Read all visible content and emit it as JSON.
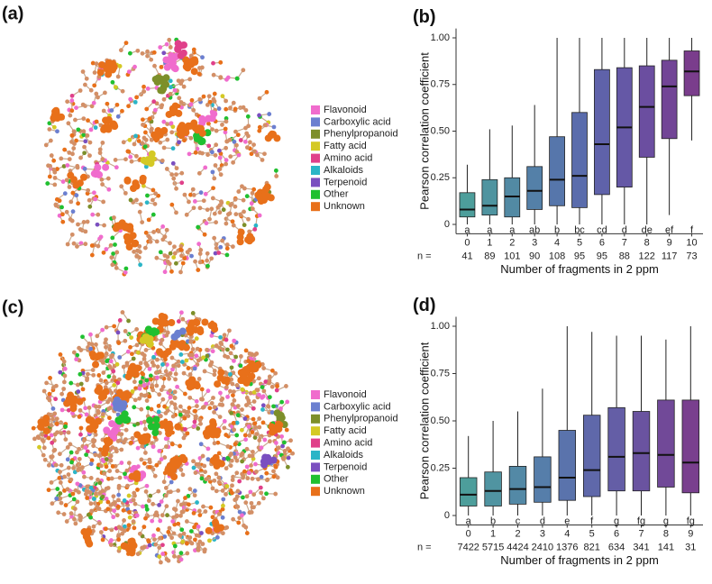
{
  "networks": [
    {
      "panel_label": "(a)",
      "legend": [
        {
          "name": "Flavonoid",
          "color": "#f06ccd"
        },
        {
          "name": "Carboxylic acid",
          "color": "#6b7fd0"
        },
        {
          "name": "Phenylpropanoid",
          "color": "#7d8f2a"
        },
        {
          "name": "Fatty acid",
          "color": "#d4c925"
        },
        {
          "name": "Amino acid",
          "color": "#e0408a"
        },
        {
          "name": "Alkaloids",
          "color": "#2bb5c7"
        },
        {
          "name": "Terpenoid",
          "color": "#7a4fc0"
        },
        {
          "name": "Other",
          "color": "#20c030"
        },
        {
          "name": "Unknown",
          "color": "#e8701a"
        }
      ]
    },
    {
      "panel_label": "(c)",
      "legend": [
        {
          "name": "Flavonoid",
          "color": "#f06ccd"
        },
        {
          "name": "Carboxylic acid",
          "color": "#6b7fd0"
        },
        {
          "name": "Phenylpropanoid",
          "color": "#7d8f2a"
        },
        {
          "name": "Fatty acid",
          "color": "#d4c925"
        },
        {
          "name": "Amino acid",
          "color": "#e0408a"
        },
        {
          "name": "Alkaloids",
          "color": "#2bb5c7"
        },
        {
          "name": "Terpenoid",
          "color": "#7a4fc0"
        },
        {
          "name": "Other",
          "color": "#20c030"
        },
        {
          "name": "Unknown",
          "color": "#e8701a"
        }
      ]
    }
  ],
  "chart_data": [
    {
      "type": "box",
      "panel_label": "(b)",
      "y_label": "Pearson correlation coefficient",
      "x_label": "Number of fragments in 2 ppm",
      "categories": [
        "0",
        "1",
        "2",
        "3",
        "4",
        "5",
        "6",
        "7",
        "8",
        "9",
        "10"
      ],
      "whisker_low": [
        0,
        0,
        0,
        0,
        0,
        0,
        0,
        0,
        0,
        0.05,
        0.45
      ],
      "q1": [
        0.04,
        0.05,
        0.04,
        0.08,
        0.1,
        0.09,
        0.16,
        0.2,
        0.36,
        0.46,
        0.69
      ],
      "median": [
        0.08,
        0.1,
        0.15,
        0.18,
        0.24,
        0.26,
        0.43,
        0.52,
        0.63,
        0.74,
        0.82
      ],
      "q3": [
        0.17,
        0.24,
        0.25,
        0.31,
        0.47,
        0.6,
        0.83,
        0.84,
        0.85,
        0.88,
        0.93
      ],
      "whisker_high": [
        0.32,
        0.51,
        0.53,
        0.64,
        1.0,
        1.0,
        1.0,
        1.0,
        1.0,
        1.0,
        1.0
      ],
      "colors": [
        "#4d9e9b",
        "#4f94a0",
        "#528aa4",
        "#5480a8",
        "#5676ab",
        "#5a6cac",
        "#5f62aa",
        "#6558a6",
        "#6b4ea0",
        "#724596",
        "#7a3d8c"
      ],
      "letters": [
        "a",
        "a",
        "a",
        "ab",
        "b",
        "bc",
        "cd",
        "d",
        "de",
        "ef",
        "f"
      ],
      "n_label": "n =",
      "n": [
        41,
        89,
        101,
        90,
        108,
        95,
        95,
        88,
        122,
        117,
        73
      ],
      "ylim": [
        -0.05,
        1.05
      ],
      "yticks": [
        0,
        0.25,
        {
          "value": 0.5,
          "label": "0.50"
        },
        0.75,
        {
          "value": 1,
          "label": "1.00"
        }
      ],
      "grid": false
    },
    {
      "type": "box",
      "panel_label": "(d)",
      "y_label": "Pearson correlation coefficient",
      "x_label": "Number of fragments in 2 ppm",
      "categories": [
        "0",
        "1",
        "2",
        "3",
        "4",
        "5",
        "6",
        "7",
        "8",
        "9"
      ],
      "whisker_low": [
        0,
        0,
        0,
        0,
        0,
        0,
        0,
        0,
        0,
        0
      ],
      "q1": [
        0.05,
        0.05,
        0.06,
        0.07,
        0.08,
        0.1,
        0.13,
        0.13,
        0.15,
        0.12
      ],
      "median": [
        0.11,
        0.13,
        0.14,
        0.15,
        0.2,
        0.24,
        0.31,
        0.33,
        0.32,
        0.28
      ],
      "q3": [
        0.2,
        0.23,
        0.26,
        0.31,
        0.45,
        0.53,
        0.57,
        0.55,
        0.61,
        0.61
      ],
      "whisker_high": [
        0.42,
        0.5,
        0.55,
        0.67,
        1.0,
        0.97,
        0.95,
        0.95,
        0.93,
        1.0
      ],
      "colors": [
        "#4d9e9b",
        "#5094a1",
        "#5389a6",
        "#567eaa",
        "#5a73ac",
        "#5f68aa",
        "#645ea6",
        "#6a53a0",
        "#714998",
        "#793f8e"
      ],
      "letters": [
        "a",
        "b",
        "c",
        "d",
        "e",
        "f",
        "g",
        "fg",
        "g",
        "fg"
      ],
      "n_label": "n =",
      "n": [
        7422,
        5715,
        4424,
        2410,
        1376,
        821,
        634,
        341,
        141,
        31
      ],
      "ylim": [
        -0.05,
        1.05
      ],
      "yticks": [
        0,
        0.25,
        {
          "value": 0.5,
          "label": "0.50"
        },
        0.75,
        {
          "value": 1,
          "label": "1.00"
        }
      ],
      "grid": false
    }
  ]
}
